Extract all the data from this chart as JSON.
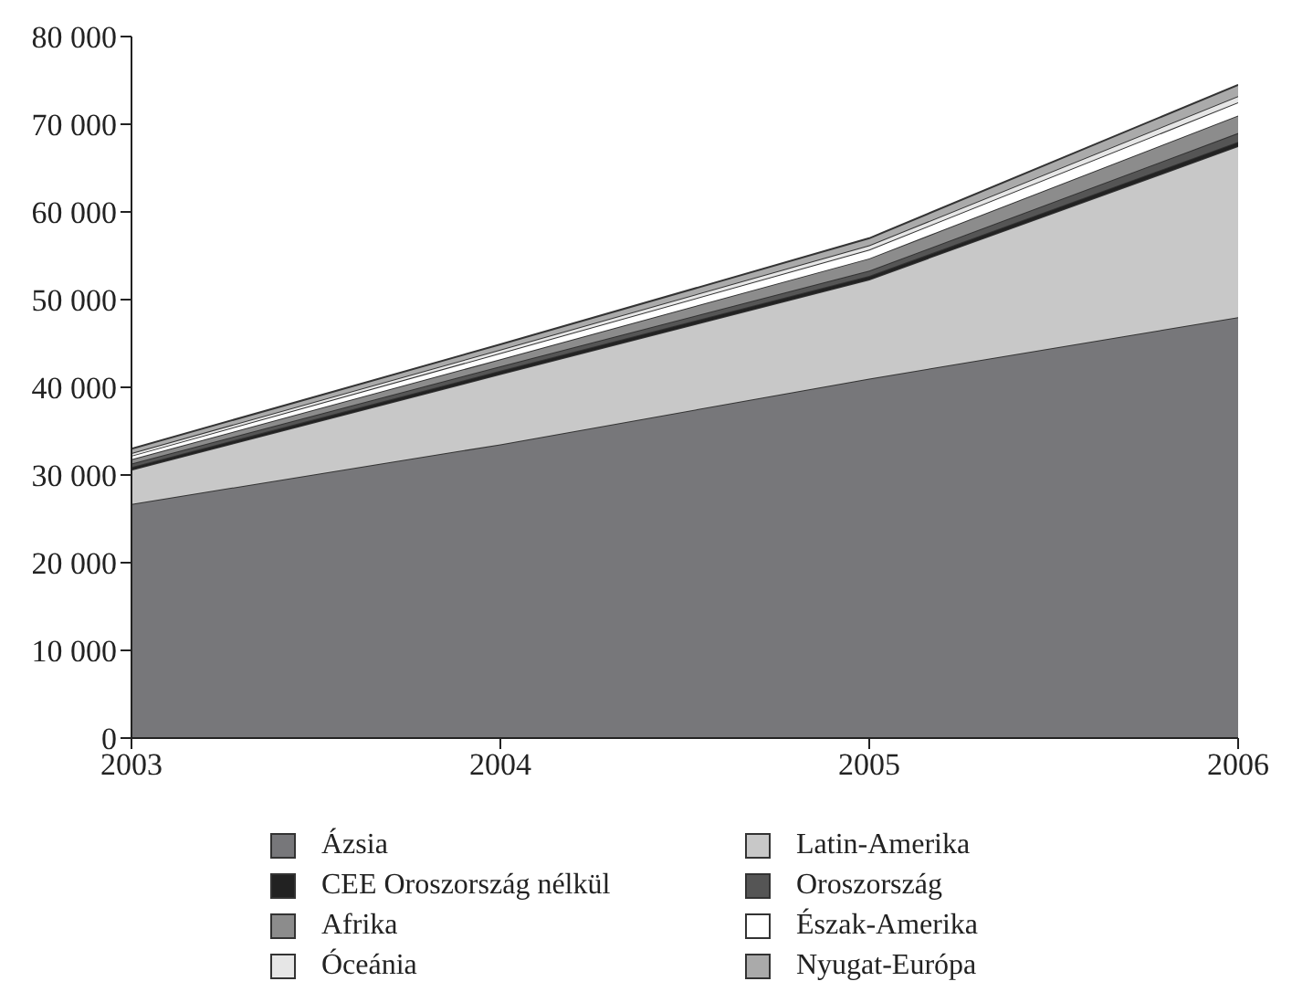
{
  "chart_data": {
    "type": "area",
    "stacked": true,
    "x": [
      2003,
      2004,
      2005,
      2006
    ],
    "xlim": [
      2003,
      2006
    ],
    "xticks": [
      2003,
      2004,
      2005,
      2006
    ],
    "ylim": [
      0,
      80000
    ],
    "yticks": [
      0,
      10000,
      20000,
      30000,
      40000,
      50000,
      60000,
      70000,
      80000
    ],
    "legend": "bottom",
    "series": [
      {
        "name": "Ázsia",
        "color": "#77777a",
        "values": [
          26700,
          33500,
          41000,
          48000
        ]
      },
      {
        "name": "Latin-Amerika",
        "color": "#c8c8c8",
        "values": [
          3900,
          8000,
          11300,
          19500
        ]
      },
      {
        "name": "CEE Oroszország nélkül",
        "color": "#222222",
        "values": [
          300,
          400,
          400,
          500
        ]
      },
      {
        "name": "Oroszország",
        "color": "#555555",
        "values": [
          400,
          500,
          600,
          1000
        ]
      },
      {
        "name": "Afrika",
        "color": "#8c8c8c",
        "values": [
          500,
          800,
          1400,
          2000
        ]
      },
      {
        "name": "Észak-Amerika",
        "color": "#ffffff",
        "values": [
          400,
          700,
          1000,
          1500
        ]
      },
      {
        "name": "Óceánia",
        "color": "#e6e6e6",
        "values": [
          300,
          400,
          500,
          700
        ]
      },
      {
        "name": "Nyugat-Európa",
        "color": "#aaaaaa",
        "values": [
          500,
          600,
          800,
          1300
        ]
      }
    ]
  }
}
